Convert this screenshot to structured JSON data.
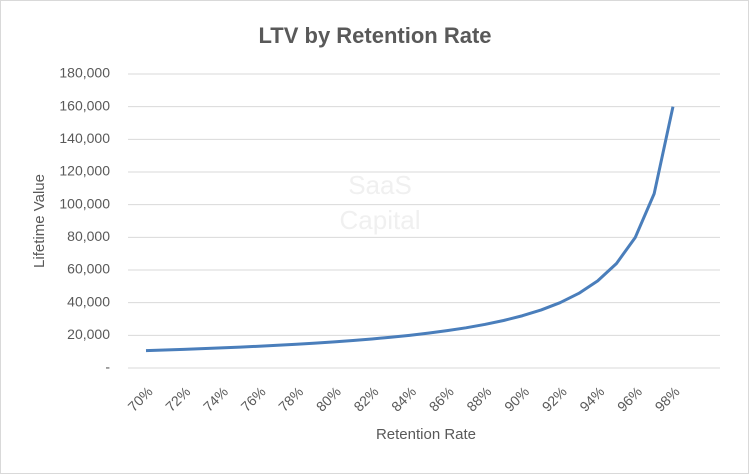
{
  "chart_data": {
    "type": "line",
    "title": "LTV by Retention Rate",
    "watermark": [
      "SaaS",
      "Capital"
    ],
    "x_label": "Retention Rate",
    "y_label": "Lifetime Value",
    "categories": [
      "70%",
      null,
      "72%",
      null,
      "74%",
      null,
      "76%",
      null,
      "78%",
      null,
      "80%",
      null,
      "82%",
      null,
      "84%",
      null,
      "86%",
      null,
      "88%",
      null,
      "90%",
      null,
      "92%",
      null,
      "94%",
      null,
      "96%",
      null,
      "98%"
    ],
    "values": [
      10667,
      11034,
      11429,
      11852,
      12308,
      12800,
      13333,
      13913,
      14545,
      15238,
      16000,
      16842,
      17778,
      18824,
      20000,
      21333,
      22857,
      24615,
      26667,
      29091,
      32000,
      35556,
      40000,
      45714,
      53333,
      64000,
      80000,
      106667,
      160000
    ],
    "color": "#4a7ebb",
    "ylim": [
      0,
      180000
    ],
    "yticks": [
      {
        "value": 0,
        "label": "-"
      },
      {
        "value": 20000,
        "label": "20,000"
      },
      {
        "value": 40000,
        "label": "40,000"
      },
      {
        "value": 60000,
        "label": "60,000"
      },
      {
        "value": 80000,
        "label": "80,000"
      },
      {
        "value": 100000,
        "label": "100,000"
      },
      {
        "value": 120000,
        "label": "120,000"
      },
      {
        "value": 140000,
        "label": "140,000"
      },
      {
        "value": 160000,
        "label": "160,000"
      },
      {
        "value": 180000,
        "label": "180,000"
      }
    ],
    "grid": true
  }
}
